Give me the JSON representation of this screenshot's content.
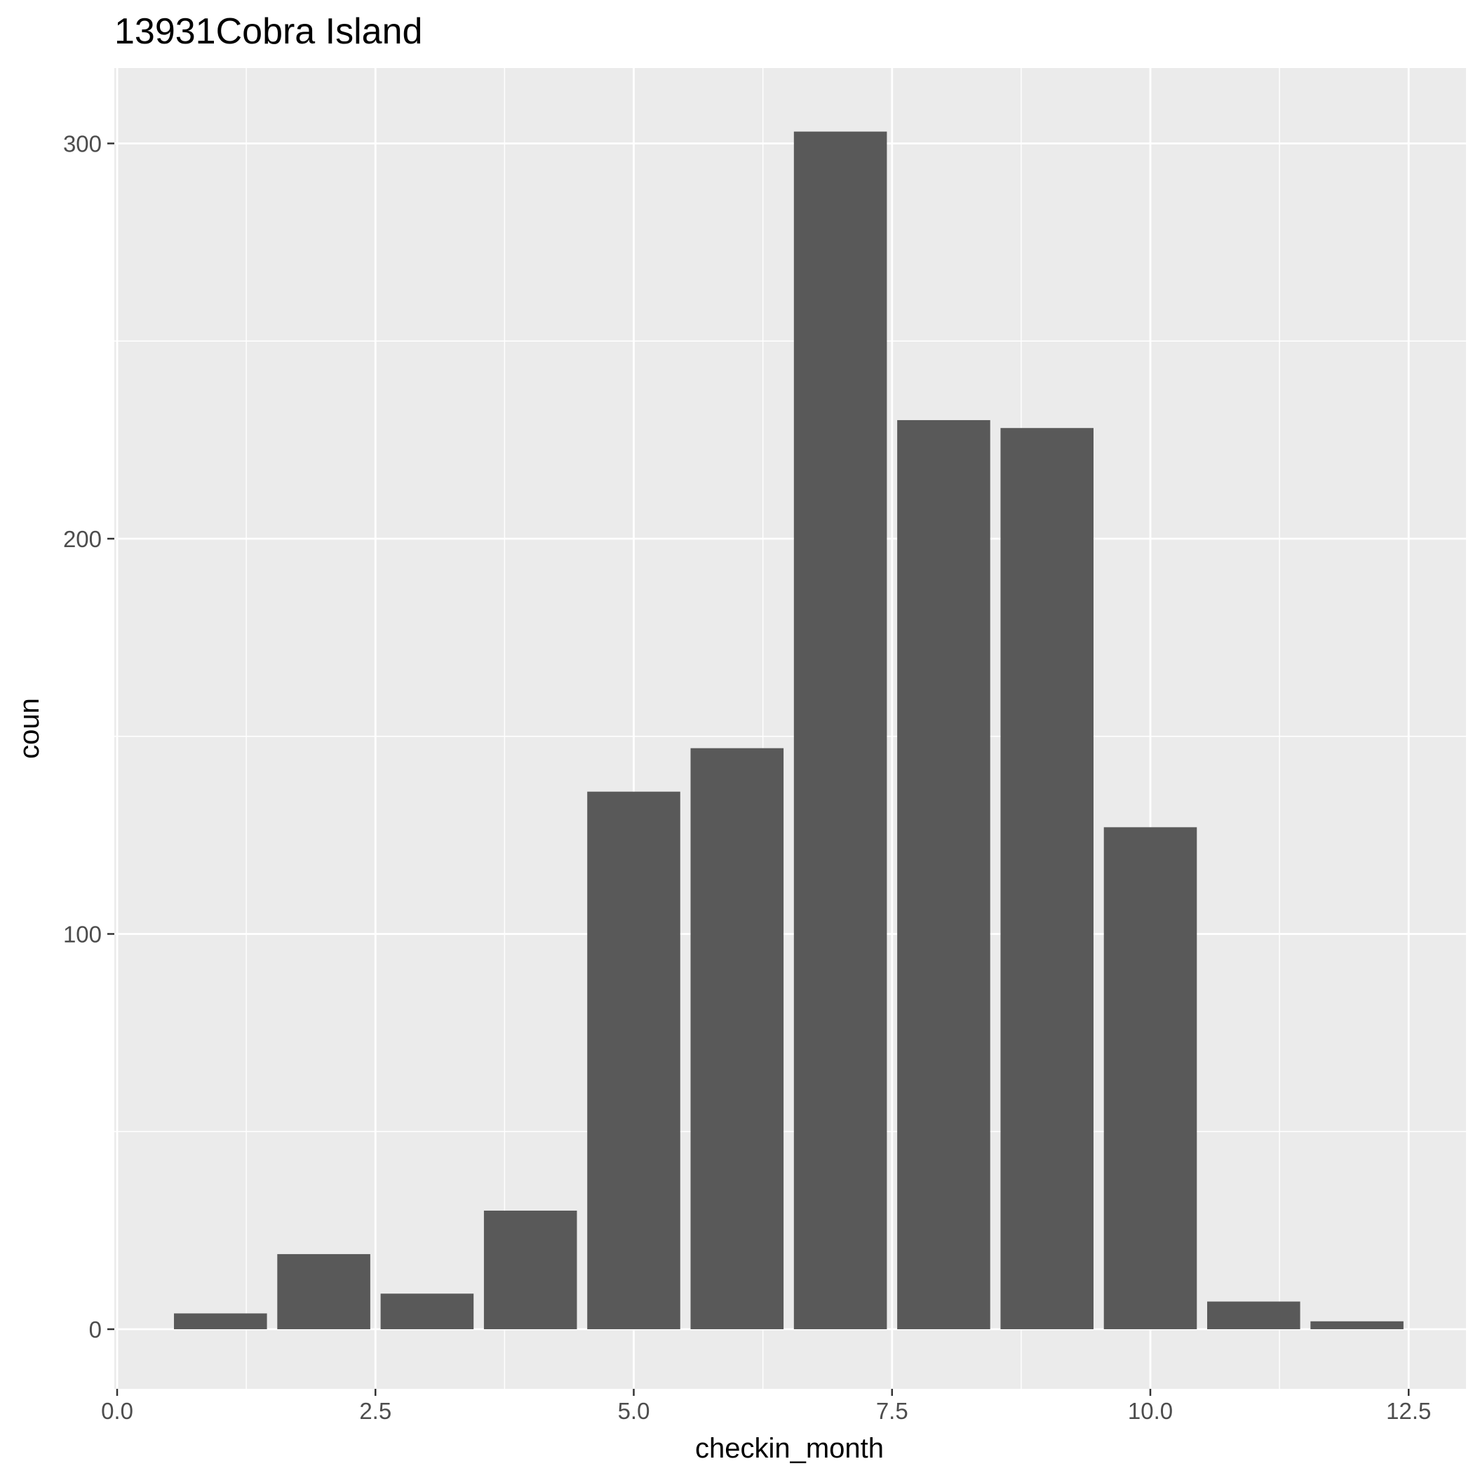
{
  "chart_data": {
    "type": "bar",
    "title": "13931Cobra Island",
    "xlabel": "checkin_month",
    "ylabel": "coun",
    "x": [
      1,
      2,
      3,
      4,
      5,
      6,
      7,
      8,
      9,
      10,
      11,
      12
    ],
    "values": [
      4,
      19,
      9,
      30,
      136,
      147,
      303,
      230,
      228,
      127,
      7,
      2
    ],
    "xlim": [
      0.0,
      12.5
    ],
    "ylim": [
      0,
      300
    ],
    "x_ticks": [
      "0.0",
      "2.5",
      "5.0",
      "7.5",
      "10.0",
      "12.5"
    ],
    "y_ticks": [
      "0",
      "100",
      "200",
      "300"
    ],
    "grid": true,
    "legend": "none",
    "colors": {
      "panel": "#ebebeb",
      "grid": "#ffffff",
      "bar": "#595959",
      "tick_text": "#4d4d4d",
      "tick_mark": "#333333"
    }
  }
}
